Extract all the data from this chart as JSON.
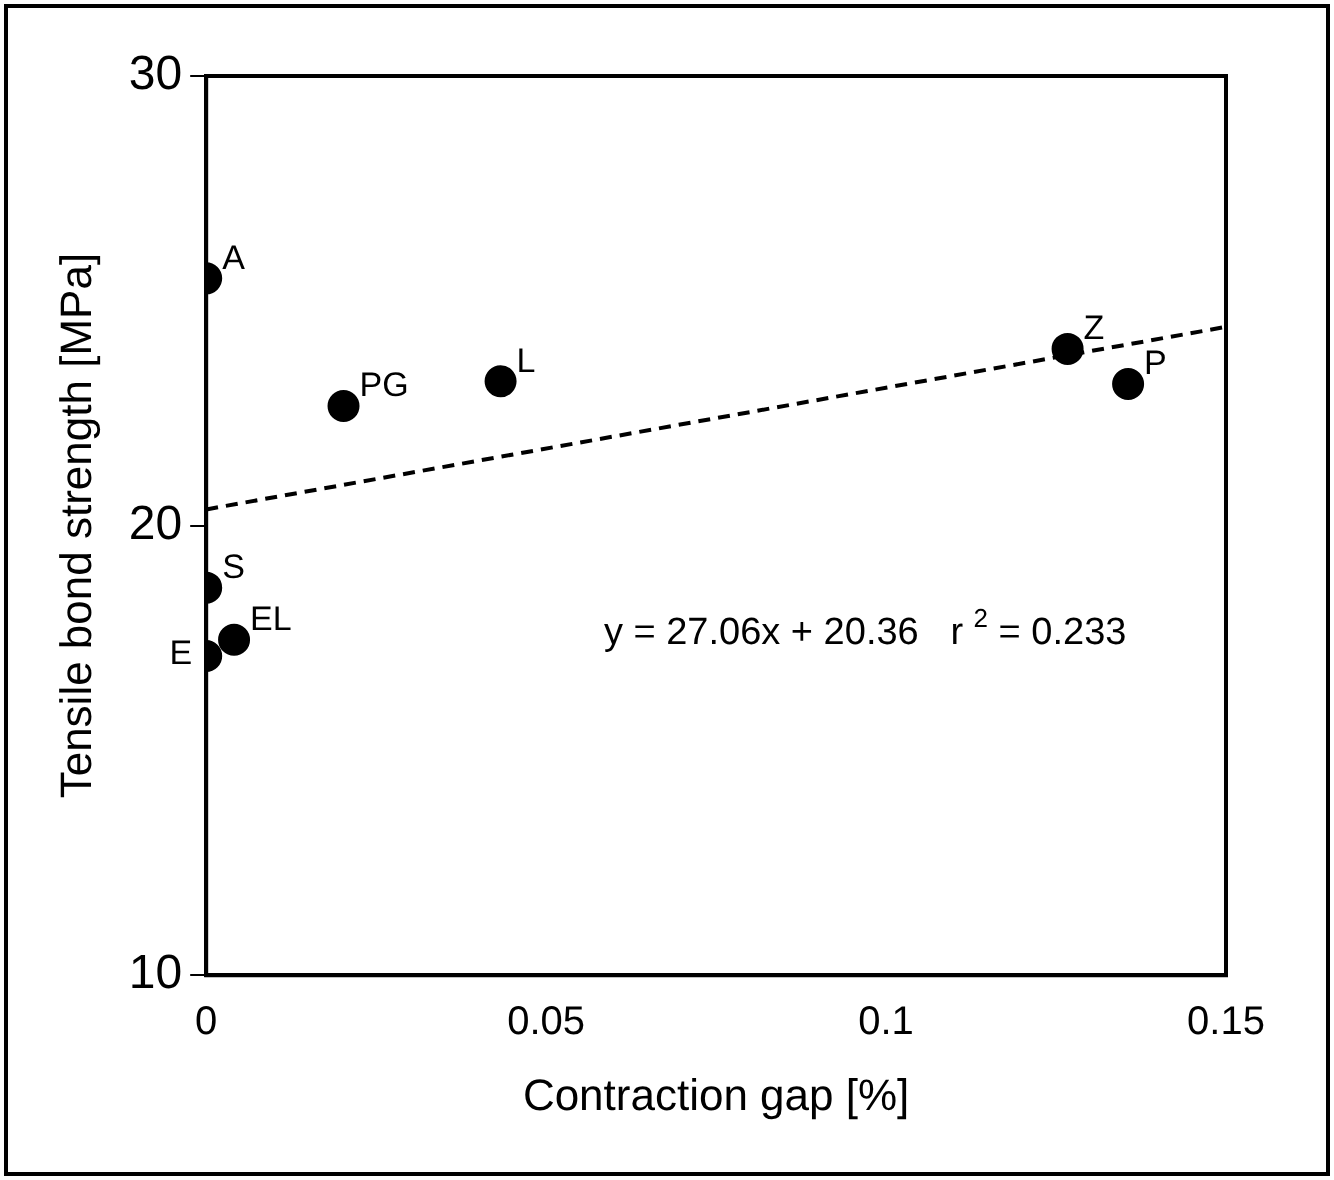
{
  "chart_data": {
    "type": "scatter",
    "xlabel": "Contraction gap [%]",
    "ylabel": "Tensile bond strength [MPa]",
    "xlim": [
      0,
      0.15
    ],
    "xticks": [
      0,
      0.05,
      0.1,
      0.15
    ],
    "ylim": [
      10,
      30
    ],
    "yticks": [
      10,
      20,
      30
    ],
    "grid": false,
    "legend": false,
    "marker": "circle",
    "series": [
      {
        "color": "#000000",
        "x": [
          0,
          0.0202,
          0.0433,
          0.1267,
          0.1356,
          0,
          0,
          0.0041
        ],
        "values": [
          25.5,
          22.66,
          23.21,
          23.93,
          23.15,
          18.62,
          17.1,
          17.46
        ]
      },
      {
        "type": "line",
        "color": "#000000",
        "line_style": "dashed",
        "marker": "none",
        "x": [
          0,
          0.15
        ],
        "values": [
          20.36,
          24.42
        ]
      }
    ],
    "annotations": [
      {
        "text": "A",
        "x": 0,
        "y": 25.5
      },
      {
        "text": "PG",
        "x": 0.0202,
        "y": 22.66
      },
      {
        "text": "L",
        "x": 0.0433,
        "y": 23.21
      },
      {
        "text": "Z",
        "x": 0.1267,
        "y": 23.93
      },
      {
        "text": "P",
        "x": 0.1356,
        "y": 23.15
      },
      {
        "text": "S",
        "x": 0,
        "y": 18.62
      },
      {
        "text": "E",
        "x": 0,
        "y": 17.1
      },
      {
        "text": "EL",
        "x": 0.0041,
        "y": 17.46
      },
      "y = 27.06x + 20.36   r $^{2}$ = 0.233"
    ]
  }
}
